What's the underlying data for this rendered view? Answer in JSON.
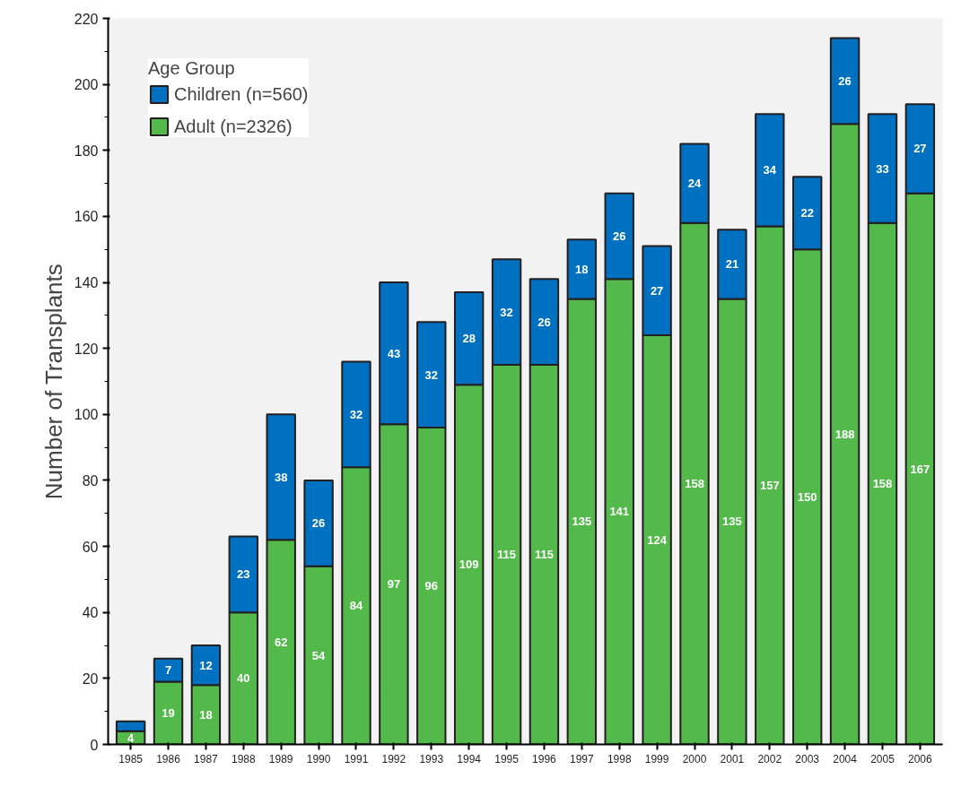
{
  "chart_data": {
    "type": "bar",
    "stacked": true,
    "ylabel": "Number of Transplants",
    "legend_title": "Age Group",
    "legend": "top left",
    "grid": false,
    "categories": [
      "1985",
      "1986",
      "1987",
      "1988",
      "1989",
      "1990",
      "1991",
      "1992",
      "1993",
      "1994",
      "1995",
      "1996",
      "1997",
      "1998",
      "1999",
      "2000",
      "2001",
      "2002",
      "2003",
      "2004",
      "2005",
      "2006"
    ],
    "ylim": [
      0,
      220
    ],
    "yticks": [
      0,
      20,
      40,
      60,
      80,
      100,
      120,
      140,
      160,
      180,
      200,
      220
    ],
    "series": [
      {
        "name": "Adult (n=2326)",
        "color": "#53b94a",
        "values": [
          4,
          19,
          18,
          40,
          62,
          54,
          84,
          97,
          96,
          109,
          115,
          115,
          135,
          141,
          124,
          158,
          135,
          157,
          150,
          188,
          158,
          167
        ],
        "value_labels": [
          "4",
          "19",
          "18",
          "40",
          "62",
          "54",
          "84",
          "97",
          "96",
          "109",
          "115",
          "115",
          "135",
          "141",
          "124",
          "158",
          "135",
          "157",
          "150",
          "188",
          "158",
          "167"
        ]
      },
      {
        "name": "Children (n=560)",
        "color": "#0070c0",
        "values": [
          3,
          7,
          12,
          23,
          38,
          26,
          32,
          43,
          32,
          28,
          32,
          26,
          18,
          26,
          27,
          24,
          21,
          34,
          22,
          26,
          33,
          27
        ],
        "value_labels": [
          null,
          "7",
          "12",
          "23",
          "38",
          "26",
          "32",
          "43",
          "32",
          "28",
          "32",
          "26",
          "18",
          "26",
          "27",
          "24",
          "21",
          "34",
          "22",
          "26",
          "33",
          "27"
        ]
      }
    ]
  }
}
